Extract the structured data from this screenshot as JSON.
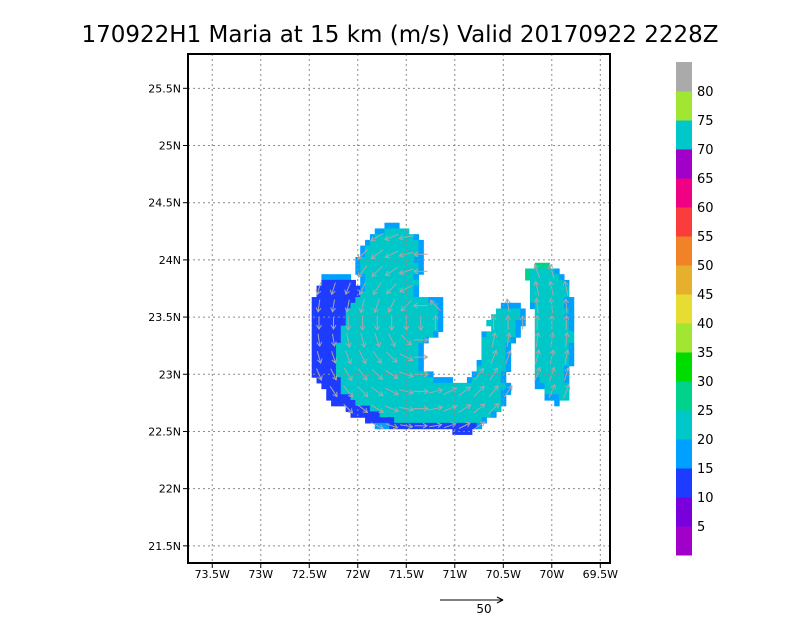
{
  "chart_data": {
    "type": "heatmap",
    "title": "170922H1 Maria at 15 km (m/s) Valid 20170922 2228Z",
    "x_ticks": [
      {
        "lon": -73.5,
        "label": "73.5W"
      },
      {
        "lon": -73,
        "label": "73W"
      },
      {
        "lon": -72.5,
        "label": "72.5W"
      },
      {
        "lon": -72,
        "label": "72W"
      },
      {
        "lon": -71.5,
        "label": "71.5W"
      },
      {
        "lon": -71,
        "label": "71W"
      },
      {
        "lon": -70.5,
        "label": "70.5W"
      },
      {
        "lon": -70,
        "label": "70W"
      },
      {
        "lon": -69.5,
        "label": "69.5W"
      }
    ],
    "y_ticks": [
      {
        "lat": 21.5,
        "label": "21.5N"
      },
      {
        "lat": 22,
        "label": "22N"
      },
      {
        "lat": 22.5,
        "label": "22.5N"
      },
      {
        "lat": 23,
        "label": "23N"
      },
      {
        "lat": 23.5,
        "label": "23.5N"
      },
      {
        "lat": 24,
        "label": "24N"
      },
      {
        "lat": 24.5,
        "label": "24.5N"
      },
      {
        "lat": 25,
        "label": "25N"
      },
      {
        "lat": 25.5,
        "label": "25.5N"
      }
    ],
    "xlim": [
      -73.75,
      -69.4
    ],
    "ylim": [
      21.35,
      25.8
    ],
    "grid": true,
    "colorbar": {
      "levels": [
        0,
        5,
        10,
        15,
        20,
        25,
        30,
        35,
        40,
        45,
        50,
        55,
        60,
        65,
        70,
        75,
        80,
        85
      ],
      "colors": [
        "#a000c8",
        "#7800dc",
        "#1e3cff",
        "#00a0ff",
        "#00c8c8",
        "#00d28c",
        "#00dc00",
        "#a0e632",
        "#e6dc32",
        "#e6af2d",
        "#f08228",
        "#fa3c3c",
        "#f00082",
        "#a000c8",
        "#00c8c8",
        "#a0e632",
        "#aaaaaa"
      ],
      "labels": [
        {
          "value": 5,
          "text": "5"
        },
        {
          "value": 10,
          "text": "10"
        },
        {
          "value": 15,
          "text": "15"
        },
        {
          "value": 20,
          "text": "20"
        },
        {
          "value": 25,
          "text": "25"
        },
        {
          "value": 30,
          "text": "30"
        },
        {
          "value": 35,
          "text": "35"
        },
        {
          "value": 40,
          "text": "40"
        },
        {
          "value": 45,
          "text": "45"
        },
        {
          "value": 50,
          "text": "50"
        },
        {
          "value": 55,
          "text": "55"
        },
        {
          "value": 60,
          "text": "60"
        },
        {
          "value": 65,
          "text": "65"
        },
        {
          "value": 70,
          "text": "70"
        },
        {
          "value": 75,
          "text": "75"
        },
        {
          "value": 80,
          "text": "80"
        }
      ]
    },
    "wind_field": {
      "lon0": -72.45,
      "lat0": 22.45,
      "dlon": 0.05,
      "dlat": 0.05,
      "rows": [
        ".......................................................",
        ".......................................................",
        "...............lll.....................................",
        ".............llkkkkk...................................",
        "............lkkkkkkkkl.................................",
        "...........lkkkkkkkkkkl................................",
        "..........lkkkkkkkkkkkl................................",
        "..........lkkkkkkkkkkkl................................",
        ".........lkkkkkkkkkkkll................................",
        ".........lkkkkkkkkkkkkl.......................jjj......",
        ".........lkkkkkkkkkkkkl.....................jkkkkkl....",
        "..llllll..lkkkkkkkkkkl......................jkkkkkkl...",
        "..mmmmmmm.lkkkkkkkkkkk.......................kkkkkkkl..",
        ".mmmmmmmmmlkkkkkkkkkkl.......................kkkkkkkk..",
        ".mmmmmmmmmkkkkkkkkkkkl.......................kkkkkkkk..",
        "mmmmmmmmmkkkkkkkkkkkkkkklll..................kkkkkkkll.",
        "mmmmmmmmkkkkkkkkkkkkkkkkkkl............llll..lkkkkkkll.",
        "mmmmmmmkkkkkkkkkkkkkkkkkkkl...........kkkkkl..kkkkkkkl.",
        "mmmmmmmkkkkkkkkkkkkkkkkkkkl..........kkkkkkl..kkkkkkll.",
        "mmmmmmmkkkkkkkkkkkkkkkkkkkl.........kkkkkkll..kkkkkkkl.",
        "mmmmmmkkkkkkkkkkkkkkkkkkkkl..........kkkkkl...kkkkkkkl.",
        "mmmmmmkkkkkkkkkkkkkkkkkkkl.........lkkkkkkl...kkkkkkkk.",
        "mmmmmmkkkkkkkkkkkkkkkkkl...........kkkkkkl....kkkkkkkk.",
        "mmmmmkkkkkkkkkkkkkkkkkl............kkkkkl.....kkkkkkkl.",
        "mmmmmkkkkkkkkkkkkkkkkkl............kkkkkl.....kkkkkkkl.",
        "mmmmmkkkkkkkkkkkkkkkkkl............kkkkkl.....kkkkkkkl.",
        "mmmmmkkkkkkkkkkkkkkkkkl...........lkkkkkl.....kkkkkkkl.",
        "mmmmmkkkkkkkkkkkkkkkkkl...........kkkkkkl.....kkkkkkl..",
        "mmmmmkkkkkkkkkkkkkkkkkkkl........lkkkkkl......kkkkkkl..",
        ".mmmmmkkkkkkkkkkkkkkkkkkkllll...lkkkkkkl......lkkkkkl..",
        "..mmmmkkkkkkkkkkkkkkkkkkkkkkkkkkkkkkkkkkl.....llkkkkk..",
        "...mmmkkkkkkkkkkkkkkkkkkkkkkkkkkkkkkkkkll.......kkkkk..",
        "...mmmmmkkkkkkkkkkkkkkkkkkkkkkkkkkkkkkkl........lllkk..",
        "....mmmmmkkkkkkkkkkkkkkkkkkkkkkkkkkkkkkl..........l....",
        ".......mmmmmkkkkkkkkkkkkkkkkkkkkkkkkkkk................",
        "........mmmmmmkkkkkkkkkkkkkkkkkkkkkkkl.................",
        "...........mmmmmmkkkkkkkkkkkkkkkkkkl...................",
        ".............lllmmmmmmmmmmmmmmmmmml....................",
        ".............................mmmm......................",
        "......................................................."
      ]
    }
  },
  "scale_arrow": {
    "label": "50"
  }
}
